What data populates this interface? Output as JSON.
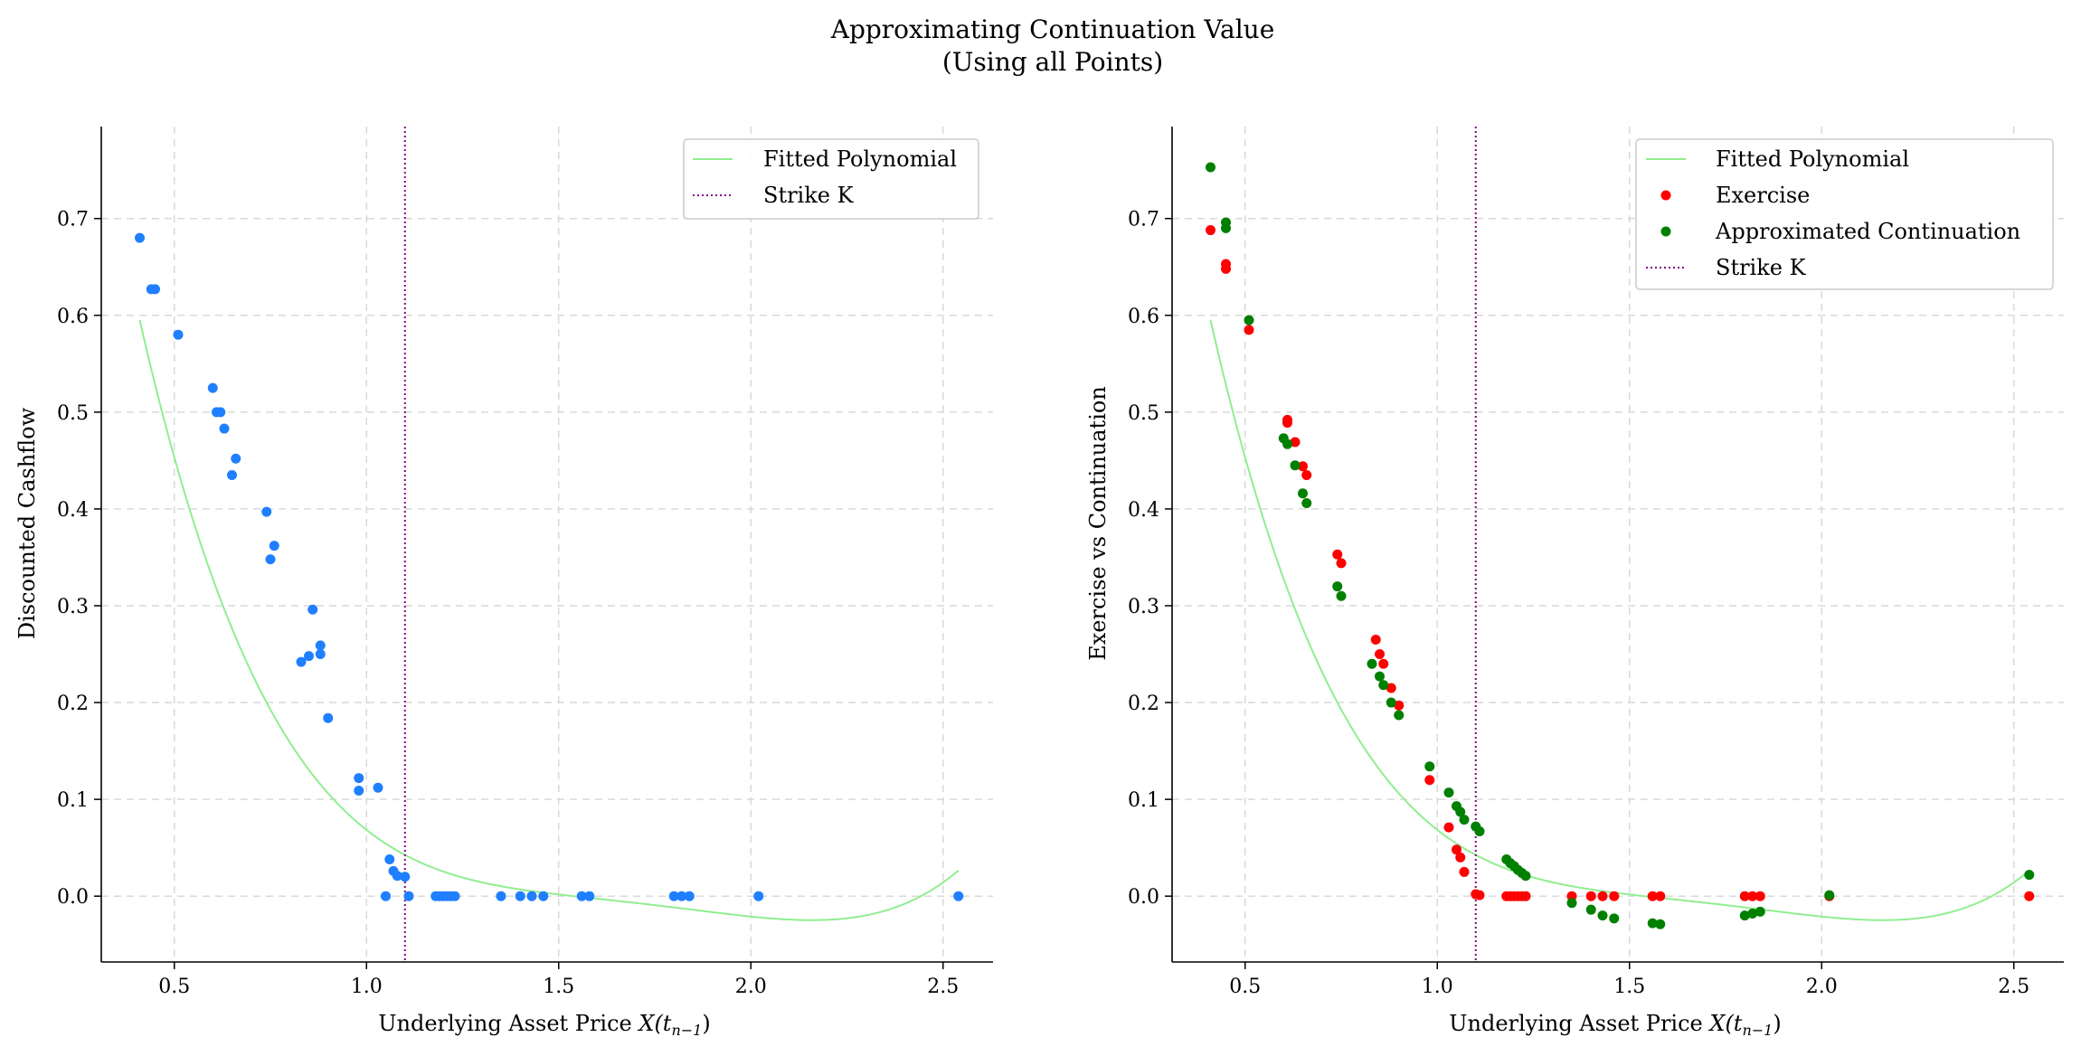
{
  "figure": {
    "title_line1": "Approximating Continuation Value",
    "title_line2": "(Using all Points)"
  },
  "colors": {
    "fit": "#90ee90",
    "strike": "#800080",
    "cashflow_points": "#1f7fff",
    "exercise": "#ff0000",
    "continuation": "#008000",
    "grid": "#d9d9d9"
  },
  "chart_data": [
    {
      "type": "scatter",
      "xlabel_text": "Underlying Asset Price ",
      "xlabel_math": "X(t",
      "xlabel_sub": "n−1",
      "xlabel_close": ")",
      "ylabel": "Discounted Cashflow",
      "xlim": [
        0.31,
        2.63
      ],
      "ylim": [
        -0.068,
        0.795
      ],
      "xticks": [
        0.5,
        1.0,
        1.5,
        2.0,
        2.5
      ],
      "xtick_labels": [
        "0.5",
        "1.0",
        "1.5",
        "2.0",
        "2.5"
      ],
      "yticks": [
        0.0,
        0.1,
        0.2,
        0.3,
        0.4,
        0.5,
        0.6,
        0.7
      ],
      "ytick_labels": [
        "0.0",
        "0.1",
        "0.2",
        "0.3",
        "0.4",
        "0.5",
        "0.6",
        "0.7"
      ],
      "grid": true,
      "legend_position": "top-right",
      "strike": 1.1,
      "fit_coefficients": [
        1.7186,
        -3.9302,
        3.4143,
        -1.3264,
        0.19217
      ],
      "fit_range": [
        0.41,
        2.54
      ],
      "legend": [
        "Fitted Polynomial",
        "Strike K"
      ],
      "series": [
        {
          "x": [
            0.41,
            0.44,
            0.45,
            0.51,
            0.6,
            0.61,
            0.62,
            0.63,
            0.65,
            0.66,
            0.74,
            0.75,
            0.76,
            0.83,
            0.85,
            0.86,
            0.88,
            0.88,
            0.9,
            0.98,
            0.98,
            1.03,
            1.05,
            1.06,
            1.07,
            1.08,
            1.1,
            1.11,
            1.18,
            1.19,
            1.2,
            1.21,
            1.22,
            1.23,
            1.35,
            1.4,
            1.43,
            1.46,
            1.56,
            1.58,
            1.8,
            1.82,
            1.84,
            2.02,
            2.54
          ],
          "y": [
            0.68,
            0.627,
            0.627,
            0.58,
            0.525,
            0.5,
            0.5,
            0.483,
            0.435,
            0.452,
            0.397,
            0.348,
            0.362,
            0.242,
            0.248,
            0.296,
            0.25,
            0.259,
            0.184,
            0.109,
            0.122,
            0.112,
            0.0,
            0.038,
            0.026,
            0.021,
            0.02,
            0.0,
            0.0,
            0.0,
            0.0,
            0.0,
            0.0,
            0.0,
            0.0,
            0.0,
            0.0,
            0.0,
            0.0,
            0.0,
            0.0,
            0.0,
            0.0,
            0.0,
            0.0
          ]
        }
      ]
    },
    {
      "type": "scatter",
      "xlabel_text": "Underlying Asset Price ",
      "xlabel_math": "X(t",
      "xlabel_sub": "n−1",
      "xlabel_close": ")",
      "ylabel": "Exercise vs Continuation",
      "xlim": [
        0.31,
        2.63
      ],
      "ylim": [
        -0.068,
        0.795
      ],
      "xticks": [
        0.5,
        1.0,
        1.5,
        2.0,
        2.5
      ],
      "xtick_labels": [
        "0.5",
        "1.0",
        "1.5",
        "2.0",
        "2.5"
      ],
      "yticks": [
        0.0,
        0.1,
        0.2,
        0.3,
        0.4,
        0.5,
        0.6,
        0.7
      ],
      "ytick_labels": [
        "0.0",
        "0.1",
        "0.2",
        "0.3",
        "0.4",
        "0.5",
        "0.6",
        "0.7"
      ],
      "grid": true,
      "legend_position": "top-right",
      "strike": 1.1,
      "fit_coefficients": [
        1.7186,
        -3.9302,
        3.4143,
        -1.3264,
        0.19217
      ],
      "fit_range": [
        0.41,
        2.54
      ],
      "legend": [
        "Fitted Polynomial",
        "Exercise",
        "Approximated Continuation",
        "Strike K"
      ],
      "series": [
        {
          "name": "Exercise",
          "x": [
            0.41,
            0.45,
            0.45,
            0.51,
            0.61,
            0.61,
            0.63,
            0.65,
            0.66,
            0.74,
            0.75,
            0.84,
            0.85,
            0.86,
            0.88,
            0.9,
            0.98,
            1.03,
            1.05,
            1.06,
            1.07,
            1.1,
            1.11,
            1.18,
            1.19,
            1.2,
            1.21,
            1.22,
            1.23,
            1.35,
            1.4,
            1.43,
            1.46,
            1.56,
            1.58,
            1.8,
            1.82,
            1.84,
            2.02,
            2.54
          ],
          "y": [
            0.688,
            0.653,
            0.648,
            0.585,
            0.492,
            0.489,
            0.469,
            0.444,
            0.435,
            0.353,
            0.344,
            0.265,
            0.25,
            0.24,
            0.215,
            0.197,
            0.12,
            0.071,
            0.048,
            0.04,
            0.025,
            0.002,
            0.001,
            0.0,
            0.0,
            0.0,
            0.0,
            0.0,
            0.0,
            0.0,
            0.0,
            0.0,
            0.0,
            0.0,
            0.0,
            0.0,
            0.0,
            0.0,
            0.0,
            0.0
          ]
        },
        {
          "name": "Approximated Continuation",
          "x": [
            0.41,
            0.45,
            0.45,
            0.51,
            0.6,
            0.61,
            0.63,
            0.65,
            0.66,
            0.74,
            0.75,
            0.83,
            0.85,
            0.86,
            0.88,
            0.9,
            0.98,
            1.03,
            1.05,
            1.06,
            1.07,
            1.1,
            1.11,
            1.18,
            1.19,
            1.2,
            1.21,
            1.22,
            1.23,
            1.35,
            1.4,
            1.43,
            1.46,
            1.56,
            1.58,
            1.8,
            1.82,
            1.84,
            2.02,
            2.54
          ],
          "y": [
            0.753,
            0.696,
            0.69,
            0.595,
            0.473,
            0.467,
            0.445,
            0.416,
            0.406,
            0.32,
            0.31,
            0.24,
            0.227,
            0.218,
            0.2,
            0.187,
            0.134,
            0.107,
            0.093,
            0.087,
            0.079,
            0.072,
            0.067,
            0.038,
            0.034,
            0.031,
            0.027,
            0.024,
            0.021,
            -0.007,
            -0.014,
            -0.02,
            -0.023,
            -0.028,
            -0.029,
            -0.02,
            -0.018,
            -0.016,
            0.001,
            0.022
          ]
        }
      ]
    }
  ]
}
